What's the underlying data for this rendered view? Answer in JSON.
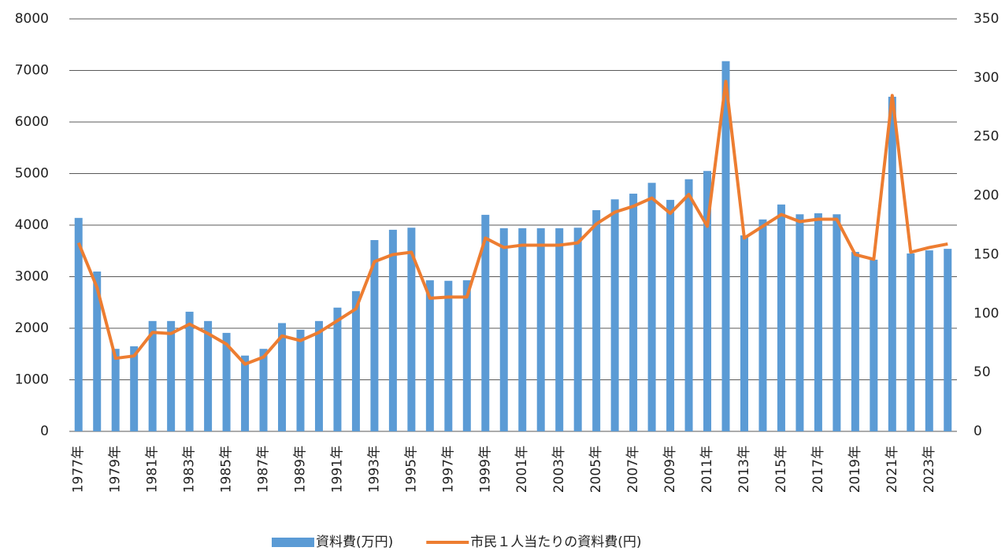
{
  "chart_data": {
    "type": "bar",
    "categories": [
      "1977年",
      null,
      "1979年",
      null,
      "1981年",
      null,
      "1983年",
      null,
      "1985年",
      null,
      "1987年",
      null,
      "1989年",
      null,
      "1991年",
      null,
      "1993年",
      null,
      "1995年",
      null,
      "1997年",
      null,
      "1999年",
      null,
      "2001年",
      null,
      "2003年",
      null,
      "2005年",
      null,
      "2007年",
      null,
      "2009年",
      null,
      "2011年",
      null,
      "2013年",
      null,
      "2015年",
      null,
      "2017年",
      null,
      "2019年",
      null,
      "2021年",
      null,
      "2023年",
      null
    ],
    "series": [
      {
        "name": "資料費(万円)",
        "type": "bar",
        "color": "#5b9bd5",
        "values": [
          4140,
          3100,
          1600,
          1650,
          2140,
          2140,
          2320,
          2140,
          1910,
          1470,
          1600,
          2100,
          1970,
          2140,
          2400,
          2720,
          3710,
          3910,
          3950,
          2930,
          2920,
          2930,
          4200,
          3940,
          3940,
          3940,
          3940,
          3950,
          4290,
          4500,
          4610,
          4820,
          4490,
          4890,
          5050,
          7180,
          3800,
          4110,
          4400,
          4210,
          4230,
          4210,
          3480,
          3330,
          6490,
          3450,
          3510,
          3540
        ]
      },
      {
        "name": "市民１人当たりの資料費(円)",
        "type": "line",
        "axis": "y2",
        "color": "#ed7d31",
        "values": [
          160,
          122,
          62,
          64,
          84,
          83,
          91,
          83,
          74,
          57,
          63,
          81,
          77,
          84,
          94,
          104,
          144,
          150,
          152,
          113,
          114,
          114,
          164,
          156,
          158,
          158,
          158,
          160,
          176,
          186,
          191,
          198,
          185,
          201,
          174,
          297,
          164,
          174,
          184,
          178,
          180,
          180,
          150,
          146,
          285,
          152,
          156,
          159
        ]
      }
    ],
    "ylim": [
      0,
      8000
    ],
    "yticks": [
      0,
      1000,
      2000,
      3000,
      4000,
      5000,
      6000,
      7000,
      8000
    ],
    "y2lim": [
      0,
      350
    ],
    "y2ticks": [
      0,
      50,
      100,
      150,
      200,
      250,
      300,
      350
    ],
    "grid": true,
    "legend": "bottom"
  }
}
